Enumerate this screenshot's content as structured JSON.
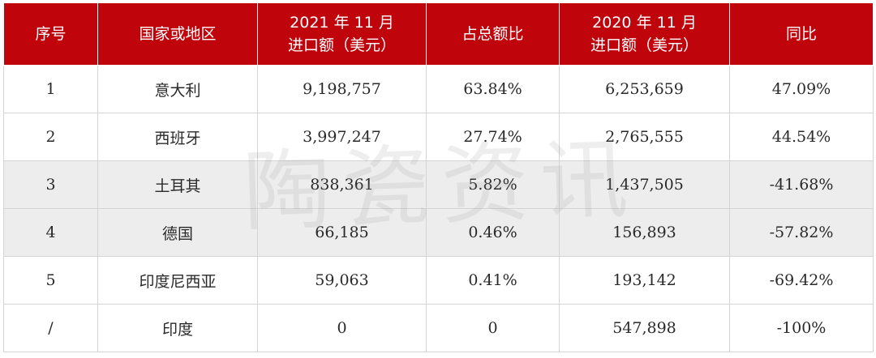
{
  "table": {
    "headers": {
      "index": "序号",
      "region": "国家或地区",
      "import2021_line1": "2021 年 11 月",
      "import2021_line2": "进口额（美元）",
      "share": "占总额比",
      "import2020_line1": "2020 年 11 月",
      "import2020_line2": "进口额（美元）",
      "yoy": "同比"
    },
    "rows": [
      {
        "index": "1",
        "region": "意大利",
        "import2021": "9,198,757",
        "share": "63.84%",
        "import2020": "6,253,659",
        "yoy": "47.09%"
      },
      {
        "index": "2",
        "region": "西班牙",
        "import2021": "3,997,247",
        "share": "27.74%",
        "import2020": "2,765,555",
        "yoy": "44.54%"
      },
      {
        "index": "3",
        "region": "土耳其",
        "import2021": "838,361",
        "share": "5.82%",
        "import2020": "1,437,505",
        "yoy": "-41.68%"
      },
      {
        "index": "4",
        "region": "德国",
        "import2021": "66,185",
        "share": "0.46%",
        "import2020": "156,893",
        "yoy": "-57.82%"
      },
      {
        "index": "5",
        "region": "印度尼西亚",
        "import2021": "59,063",
        "share": "0.41%",
        "import2020": "193,142",
        "yoy": "-69.42%"
      },
      {
        "index": "/",
        "region": "印度",
        "import2021": "0",
        "share": "0",
        "import2020": "547,898",
        "yoy": "-100%"
      }
    ]
  },
  "watermark": "陶瓷资讯",
  "colors": {
    "header_bg": "#c0040c",
    "header_text": "#ffffff",
    "row_alt_bg": "#ededed"
  }
}
